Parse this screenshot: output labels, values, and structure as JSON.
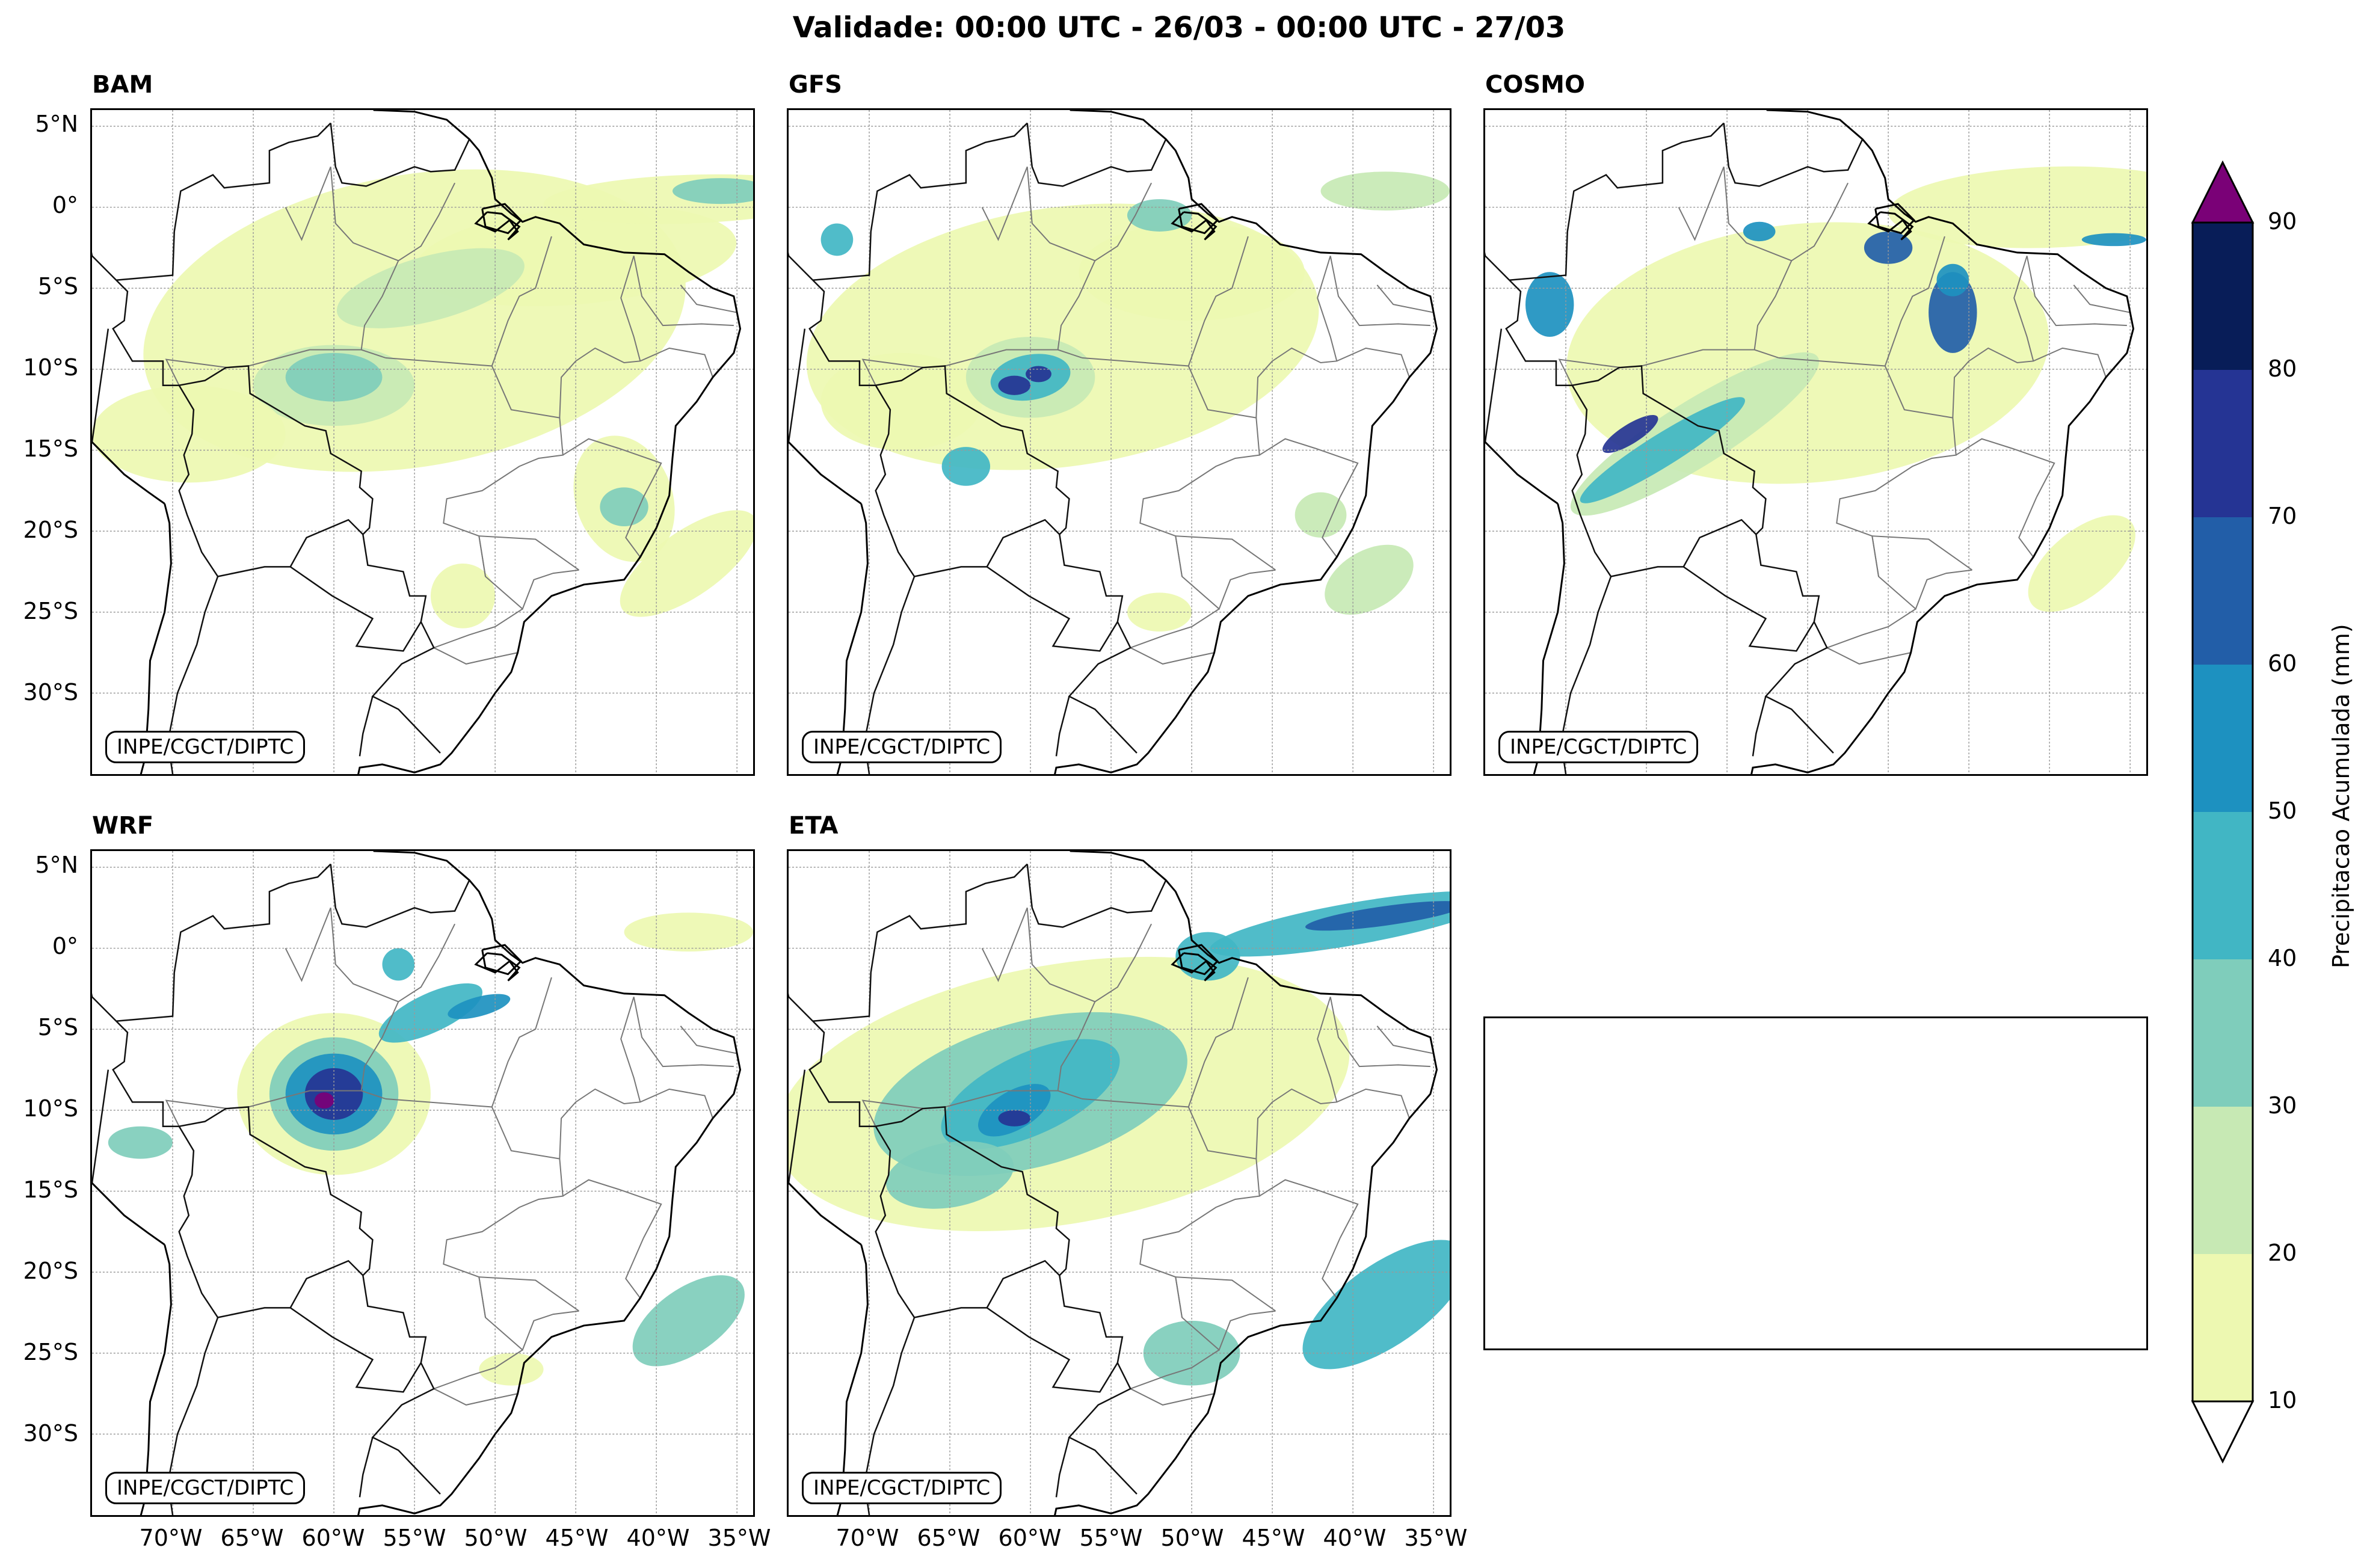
{
  "title": "Validade: 00:00 UTC - 26/03 - 00:00 UTC - 27/03",
  "credit": "INPE/CGCT/DIPTC",
  "panels": [
    {
      "label": "BAM"
    },
    {
      "label": "GFS"
    },
    {
      "label": "COSMO"
    },
    {
      "label": "WRF"
    },
    {
      "label": "ETA"
    }
  ],
  "lat_ticks": [
    "5°N",
    "0°",
    "5°S",
    "10°S",
    "15°S",
    "20°S",
    "25°S",
    "30°S"
  ],
  "lon_ticks": [
    "70°W",
    "65°W",
    "60°W",
    "55°W",
    "50°W",
    "45°W",
    "40°W",
    "35°W"
  ],
  "colorbar": {
    "title": "Precipitacao Acumulada (mm)",
    "levels": [
      "10",
      "20",
      "30",
      "40",
      "50",
      "60",
      "70",
      "80",
      "90"
    ],
    "colors": [
      "#edf8b1",
      "#c7e9b4",
      "#7fcdbb",
      "#41b6c4",
      "#1d91c0",
      "#225ea8",
      "#253494",
      "#081d58"
    ],
    "over_color": "#7a0177",
    "under_color": "#ffffff"
  }
}
